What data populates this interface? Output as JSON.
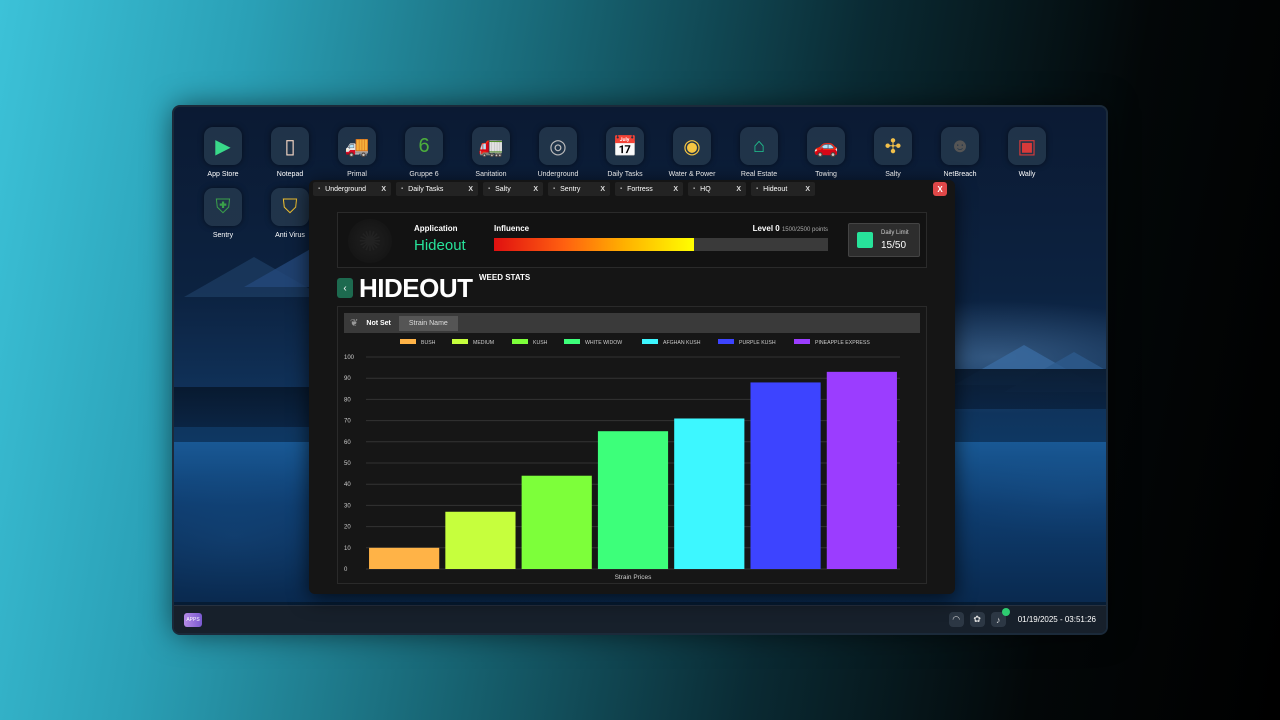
{
  "desktop": {
    "icons": [
      {
        "label": "App Store",
        "icon": "play-store-icon",
        "glyph": "▶",
        "color": "#39d98a"
      },
      {
        "label": "Notepad",
        "icon": "notepad-icon",
        "glyph": "▯",
        "color": "#f4d6c4"
      },
      {
        "label": "Primal",
        "icon": "truck-icon",
        "glyph": "🚚",
        "color": "#ff8a3a"
      },
      {
        "label": "Gruppe 6",
        "icon": "shield-six-icon",
        "glyph": "6",
        "color": "#4cae3c"
      },
      {
        "label": "Sanitation",
        "icon": "garbage-truck-icon",
        "glyph": "🚛",
        "color": "#6bbf3a"
      },
      {
        "label": "Underground",
        "icon": "turbo-icon",
        "glyph": "◎",
        "color": "#bbbbbb"
      },
      {
        "label": "Daily Tasks",
        "icon": "calendar-icon",
        "glyph": "📅",
        "color": "#e0e0e0"
      },
      {
        "label": "Water & Power",
        "icon": "water-power-icon",
        "glyph": "◉",
        "color": "#f5c542"
      },
      {
        "label": "Real Estate",
        "icon": "house-icon",
        "glyph": "⌂",
        "color": "#1fc48f"
      },
      {
        "label": "Towing",
        "icon": "tow-truck-icon",
        "glyph": "🚗",
        "color": "#e03030"
      },
      {
        "label": "Salty",
        "icon": "salty-icon",
        "glyph": "✣",
        "color": "#f2c04a"
      },
      {
        "label": "NetBreach",
        "icon": "mask-icon",
        "glyph": "☻",
        "color": "#555555"
      },
      {
        "label": "Wally",
        "icon": "wallet-icon",
        "glyph": "▣",
        "color": "#d83a3a"
      },
      {
        "label": "Sentry",
        "icon": "sentry-icon",
        "glyph": "⛨",
        "color": "#3aa04a"
      },
      {
        "label": "Anti Virus",
        "icon": "antivirus-shield-icon",
        "glyph": "⛉",
        "color": "#f0c030"
      }
    ]
  },
  "taskbar": {
    "start_label": "APPS",
    "datetime": "01/19/2025 - 03:51:26"
  },
  "window": {
    "tabs": [
      {
        "label": "Underground",
        "close": "X"
      },
      {
        "label": "Daily Tasks",
        "close": "X"
      },
      {
        "label": "Salty",
        "close": "X"
      },
      {
        "label": "Sentry",
        "close": "X"
      },
      {
        "label": "Fortress",
        "close": "X"
      },
      {
        "label": "HQ",
        "close": "X"
      },
      {
        "label": "Hideout",
        "close": "X"
      }
    ],
    "close_label": "X",
    "header": {
      "app_label": "Application",
      "app_name": "Hideout",
      "influence_label": "Influence",
      "level_text": "Level 0",
      "points_text": "1500/2500 points",
      "influence_fraction": 0.6,
      "daily_limit_label": "Daily Limit",
      "daily_limit_value": "15/50"
    },
    "back_label": "‹",
    "title": "HIDEOUT",
    "subtitle": "WEED STATS",
    "filter": {
      "status": "Not Set",
      "strain_button": "Strain Name"
    }
  },
  "chart_data": {
    "type": "bar",
    "xlabel": "Strain Prices",
    "ylim": [
      0,
      100
    ],
    "yticks": [
      0,
      10,
      20,
      30,
      40,
      50,
      60,
      70,
      80,
      90,
      100
    ],
    "legend_position": "top",
    "series": [
      {
        "name": "BUSH",
        "value": 10,
        "color": "#ffb347"
      },
      {
        "name": "MEDIUM",
        "value": 27,
        "color": "#c6ff3d"
      },
      {
        "name": "KUSH",
        "value": 44,
        "color": "#7dff3a"
      },
      {
        "name": "WHITE WIDOW",
        "value": 65,
        "color": "#3dff7a"
      },
      {
        "name": "AFGHAN KUSH",
        "value": 71,
        "color": "#3df7ff"
      },
      {
        "name": "PURPLE KUSH",
        "value": 88,
        "color": "#3d44ff"
      },
      {
        "name": "PINEAPPLE EXPRESS",
        "value": 93,
        "color": "#9b3dff"
      }
    ]
  }
}
